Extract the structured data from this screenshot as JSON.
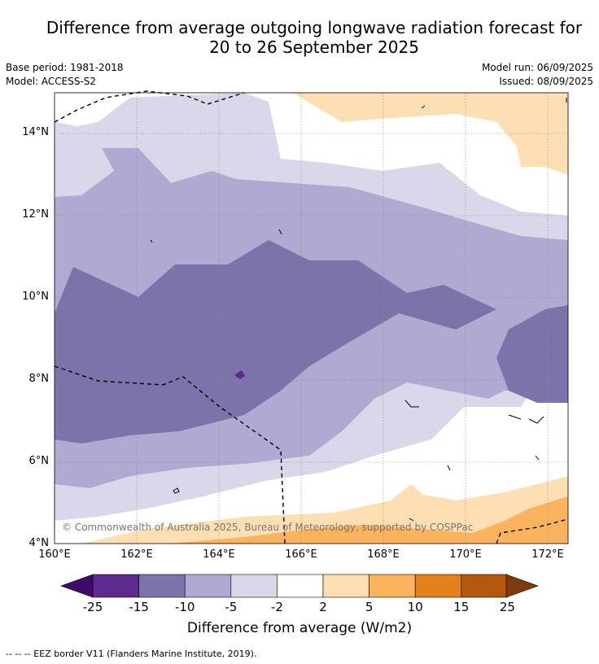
{
  "header": {
    "title_line1": "Difference from average outgoing longwave radiation forecast for",
    "title_line2": "20 to 26 September 2025",
    "base_period": "Base period: 1981-2018",
    "model": "Model: ACCESS-S2",
    "model_run": "Model run: 06/09/2025",
    "issued": "Issued: 08/09/2025"
  },
  "map": {
    "lon_range": [
      160,
      172.5
    ],
    "lat_range": [
      4,
      15
    ],
    "lat_ticks": [
      "14°N",
      "12°N",
      "10°N",
      "8°N",
      "6°N",
      "4°N"
    ],
    "lon_ticks": [
      "160°E",
      "162°E",
      "164°E",
      "166°E",
      "168°E",
      "170°E",
      "172°E"
    ],
    "copyright": "© Commonwealth of Australia 2025, Bureau of Meteorology, supported by COSPPac"
  },
  "colorbar": {
    "title": "Difference from average (W/m2)",
    "ticks": [
      "-25",
      "-15",
      "-10",
      "-5",
      "-2",
      "2",
      "5",
      "10",
      "15",
      "25"
    ],
    "colors": [
      "#3f0a6b",
      "#5d2a8d",
      "#7e72ab",
      "#b0a9d1",
      "#d9d8ea",
      "#ffffff",
      "#fddfb3",
      "#fbb35e",
      "#e4811a",
      "#b5580b",
      "#7e3b0c"
    ]
  },
  "footer": {
    "legend": "-- -- -- EEZ border V11 (Flanders Marine Institute, 2019)."
  }
}
